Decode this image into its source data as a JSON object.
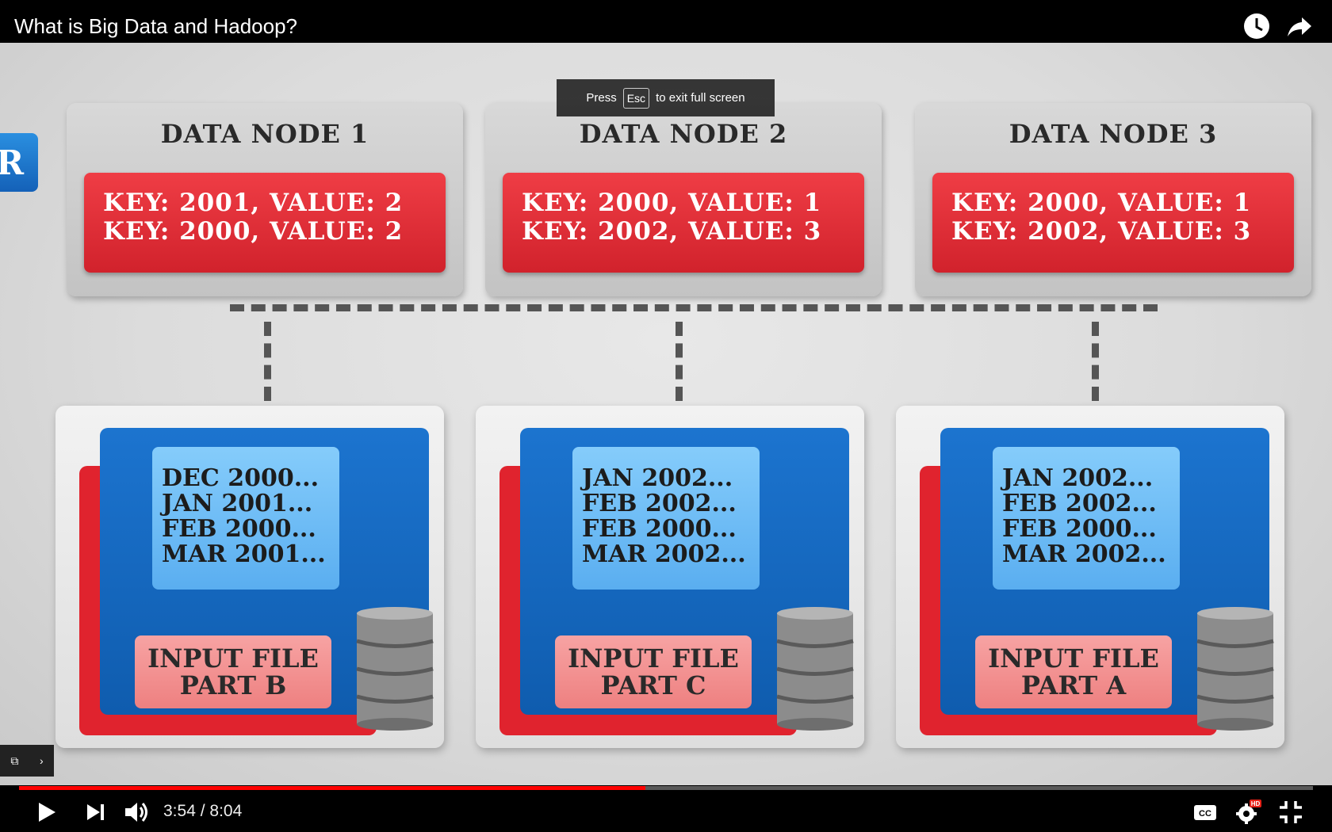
{
  "header": {
    "title": "What is Big Data and Hadoop?",
    "watch_later_icon": "clock-icon",
    "share_icon": "share-icon"
  },
  "toast": {
    "press": "Press",
    "key": "Esc",
    "suffix": "to exit full screen"
  },
  "slide": {
    "partial_badge": "R",
    "data_nodes": [
      {
        "title": "DATA NODE 1",
        "lines": [
          "KEY: 2001, VALUE: 2",
          "KEY: 2000, VALUE: 2"
        ]
      },
      {
        "title": "DATA NODE 2",
        "lines": [
          "KEY: 2000, VALUE: 1",
          "KEY: 2002, VALUE: 3"
        ]
      },
      {
        "title": "DATA NODE 3",
        "lines": [
          "KEY: 2000, VALUE: 1",
          "KEY: 2002, VALUE: 3"
        ]
      }
    ],
    "inputs": [
      {
        "dates": [
          "DEC 2000...",
          "JAN 2001...",
          "FEB 2000...",
          "MAR 2001..."
        ],
        "file": [
          "INPUT FILE",
          "PART B"
        ]
      },
      {
        "dates": [
          "JAN 2002...",
          "FEB 2002...",
          "FEB 2000...",
          "MAR 2002..."
        ],
        "file": [
          "INPUT FILE",
          "PART C"
        ]
      },
      {
        "dates": [
          "JAN 2002...",
          "FEB 2002...",
          "FEB 2000...",
          "MAR 2002..."
        ],
        "file": [
          "INPUT FILE",
          "PART A"
        ]
      }
    ],
    "colors": {
      "node_red": "#d1222c",
      "file_blue": "#1c74cf",
      "date_blue": "#85ccfb",
      "label_pink": "#f7a3a3"
    }
  },
  "player": {
    "current_time": "3:54",
    "separator": "/",
    "duration": "8:04",
    "progress_fraction": 0.4838,
    "accent": "#ff0000",
    "icons": [
      "play-icon",
      "next-icon",
      "volume-icon",
      "captions-icon",
      "settings-icon",
      "exit-fullscreen-icon",
      "miniplayer-icon"
    ],
    "quality_badge": "HD"
  }
}
